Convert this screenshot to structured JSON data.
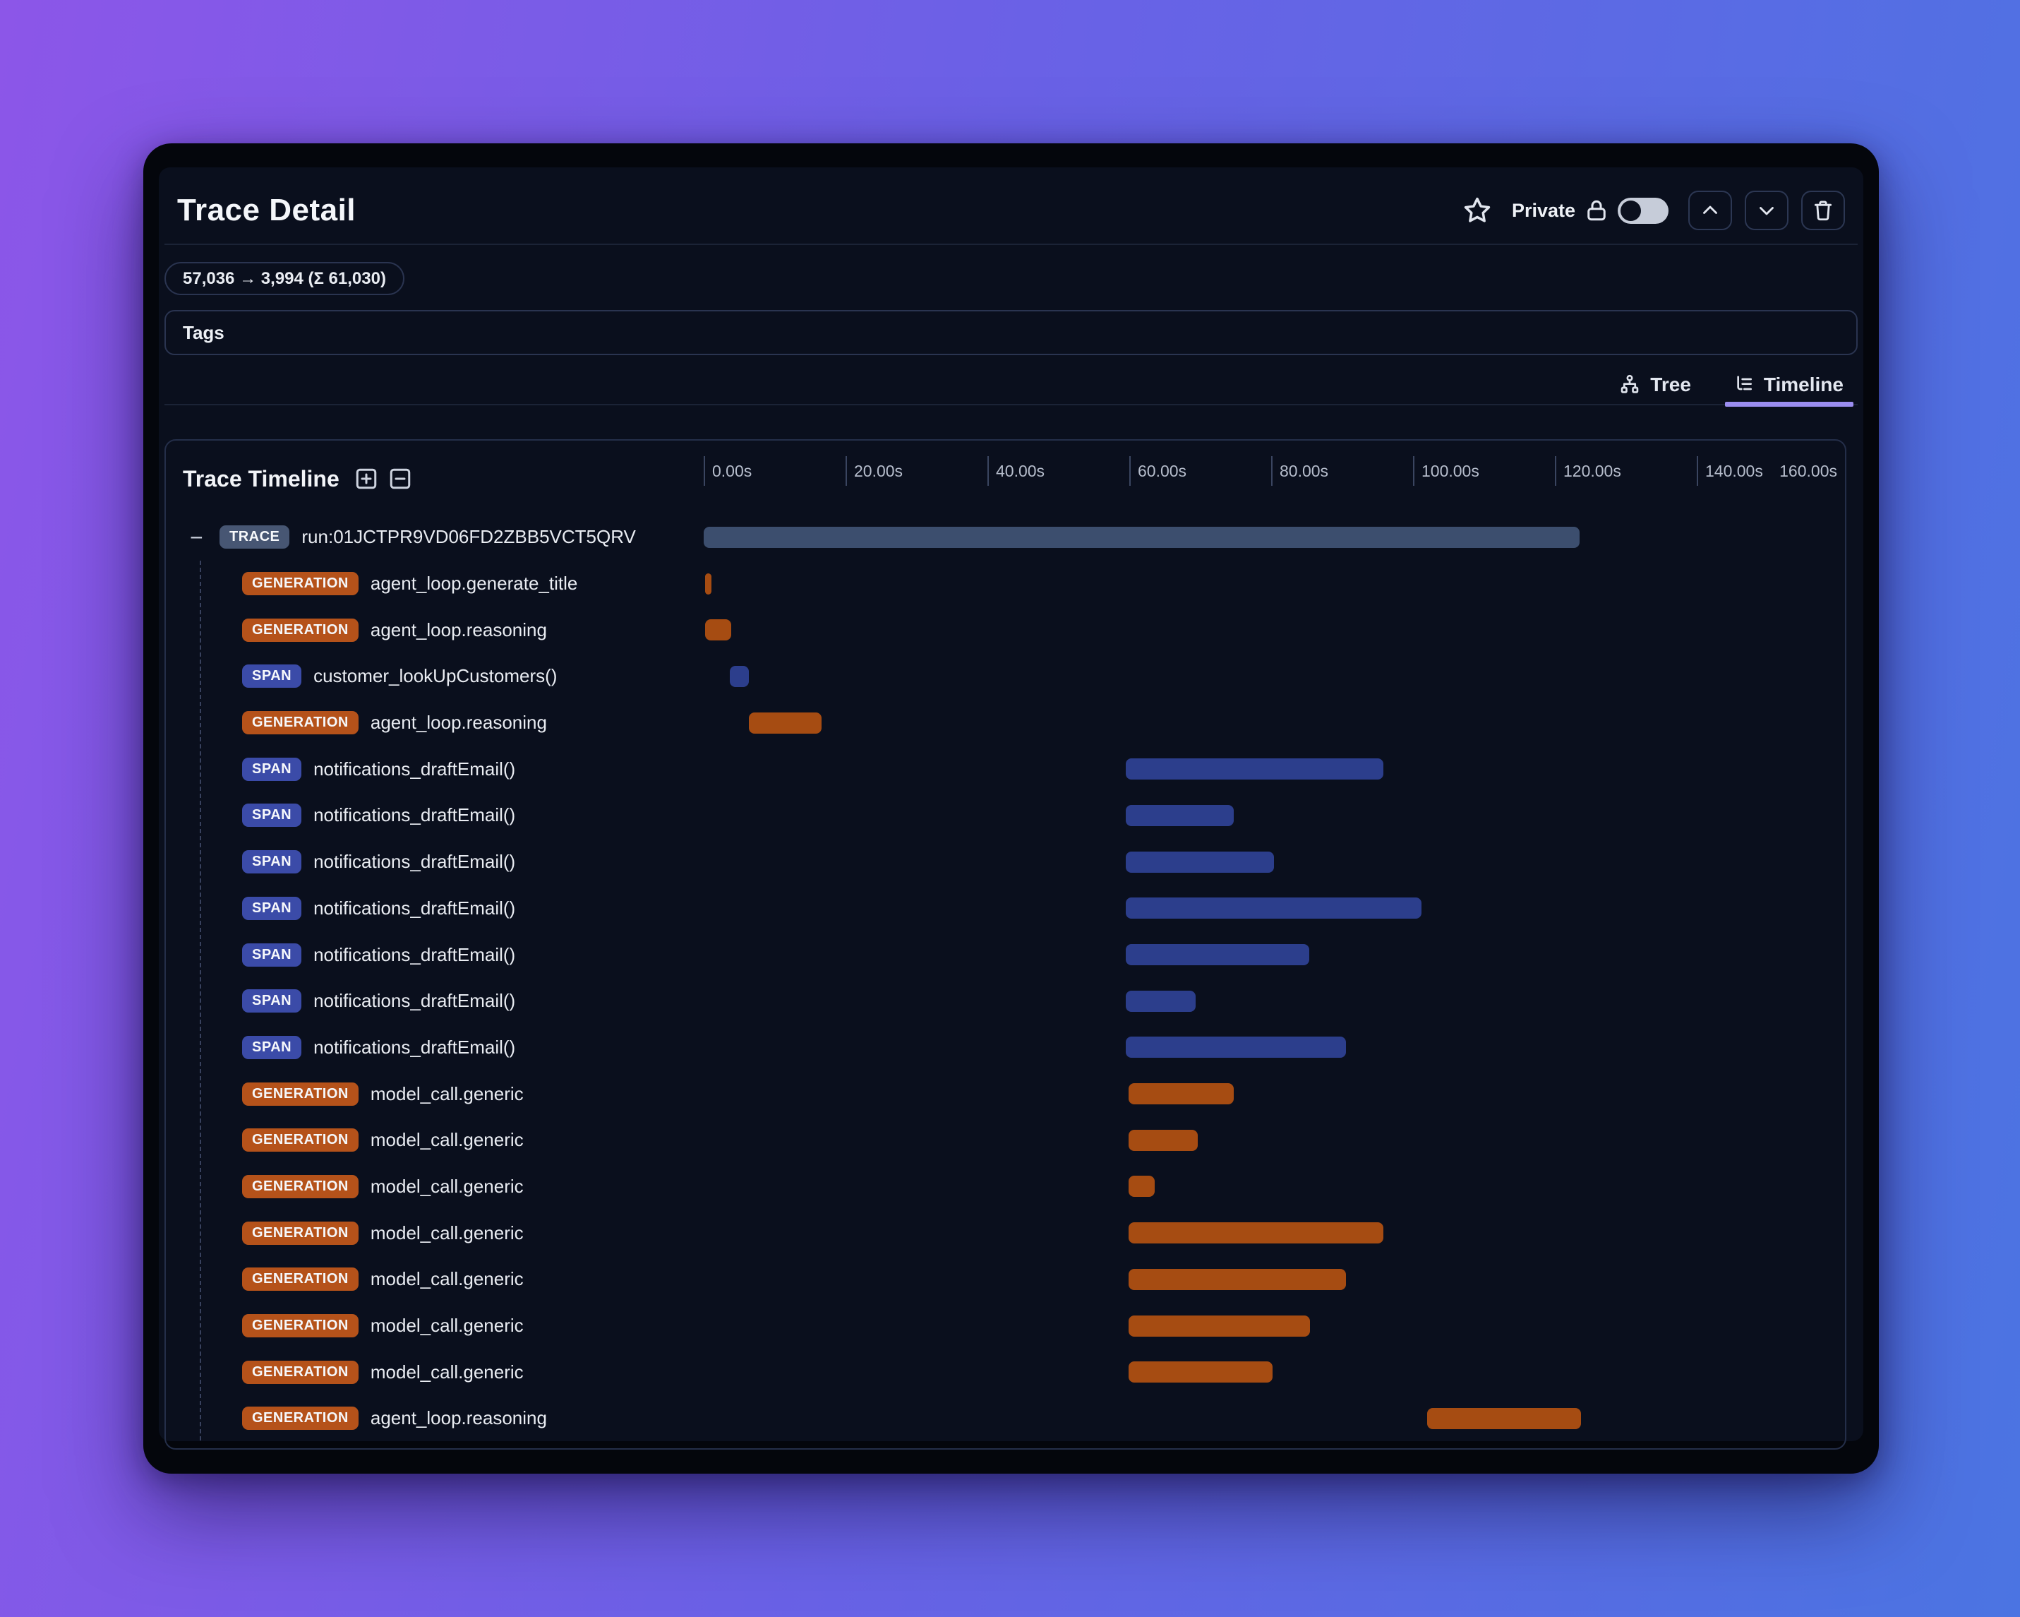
{
  "header": {
    "title": "Trace Detail",
    "privacy_label": "Private",
    "privacy_toggle_state": "off"
  },
  "meta": {
    "token_usage": "57,036 → 3,994 (Σ 61,030)",
    "tags_label": "Tags"
  },
  "tabs": {
    "tree_label": "Tree",
    "timeline_label": "Timeline",
    "active_tab": "Timeline"
  },
  "panel": {
    "title": "Trace Timeline"
  },
  "timeline": {
    "axis_ticks": [
      "0.00s",
      "20.00s",
      "40.00s",
      "60.00s",
      "80.00s",
      "100.00s",
      "120.00s",
      "140.00s",
      "160.00s"
    ],
    "max_seconds": 160,
    "rows": [
      {
        "type": "trace",
        "badge": "TRACE",
        "label": "run:01JCTPR9VD06FD2ZBB5VCT5QRV",
        "start_s": 0.0,
        "end_s": 123.5,
        "toggle": "−"
      },
      {
        "type": "generation",
        "badge": "GENERATION",
        "label": "agent_loop.generate_title",
        "start_s": 0.2,
        "end_s": 1.0
      },
      {
        "type": "generation",
        "badge": "GENERATION",
        "label": "agent_loop.reasoning",
        "start_s": 0.2,
        "end_s": 3.9
      },
      {
        "type": "span",
        "badge": "SPAN",
        "label": "customer_lookUpCustomers()",
        "start_s": 3.7,
        "end_s": 6.4
      },
      {
        "type": "generation",
        "badge": "GENERATION",
        "label": "agent_loop.reasoning",
        "start_s": 6.4,
        "end_s": 16.6
      },
      {
        "type": "span",
        "badge": "SPAN",
        "label": "notifications_draftEmail()",
        "start_s": 59.5,
        "end_s": 95.8
      },
      {
        "type": "span",
        "badge": "SPAN",
        "label": "notifications_draftEmail()",
        "start_s": 59.5,
        "end_s": 74.7
      },
      {
        "type": "span",
        "badge": "SPAN",
        "label": "notifications_draftEmail()",
        "start_s": 59.5,
        "end_s": 80.4
      },
      {
        "type": "span",
        "badge": "SPAN",
        "label": "notifications_draftEmail()",
        "start_s": 59.5,
        "end_s": 101.2
      },
      {
        "type": "span",
        "badge": "SPAN",
        "label": "notifications_draftEmail()",
        "start_s": 59.5,
        "end_s": 85.4
      },
      {
        "type": "span",
        "badge": "SPAN",
        "label": "notifications_draftEmail()",
        "start_s": 59.5,
        "end_s": 69.4
      },
      {
        "type": "span",
        "badge": "SPAN",
        "label": "notifications_draftEmail()",
        "start_s": 59.5,
        "end_s": 90.5
      },
      {
        "type": "generation",
        "badge": "GENERATION",
        "label": "model_call.generic",
        "start_s": 59.9,
        "end_s": 74.7
      },
      {
        "type": "generation",
        "badge": "GENERATION",
        "label": "model_call.generic",
        "start_s": 59.9,
        "end_s": 69.7
      },
      {
        "type": "generation",
        "badge": "GENERATION",
        "label": "model_call.generic",
        "start_s": 59.9,
        "end_s": 63.6
      },
      {
        "type": "generation",
        "badge": "GENERATION",
        "label": "model_call.generic",
        "start_s": 59.9,
        "end_s": 95.8
      },
      {
        "type": "generation",
        "badge": "GENERATION",
        "label": "model_call.generic",
        "start_s": 59.9,
        "end_s": 90.5
      },
      {
        "type": "generation",
        "badge": "GENERATION",
        "label": "model_call.generic",
        "start_s": 59.9,
        "end_s": 85.5
      },
      {
        "type": "generation",
        "badge": "GENERATION",
        "label": "model_call.generic",
        "start_s": 59.9,
        "end_s": 80.2
      },
      {
        "type": "generation",
        "badge": "GENERATION",
        "label": "agent_loop.reasoning",
        "start_s": 102.0,
        "end_s": 123.7
      }
    ]
  },
  "colors": {
    "background_gradient_start": "#8c56e8",
    "background_gradient_end": "#4b74e2",
    "window_frame": "#04060c",
    "surface": "#0a0f1d",
    "panel_border": "#242e49",
    "active_tab_underline": "#9b8df0",
    "trace_badge": "#475673",
    "trace_bar": "#3c4e6e",
    "generation_badge": "#b5521a",
    "generation_bar": "#a64c12",
    "span_badge": "#3b4ba8",
    "span_bar": "#2c3e8c"
  }
}
